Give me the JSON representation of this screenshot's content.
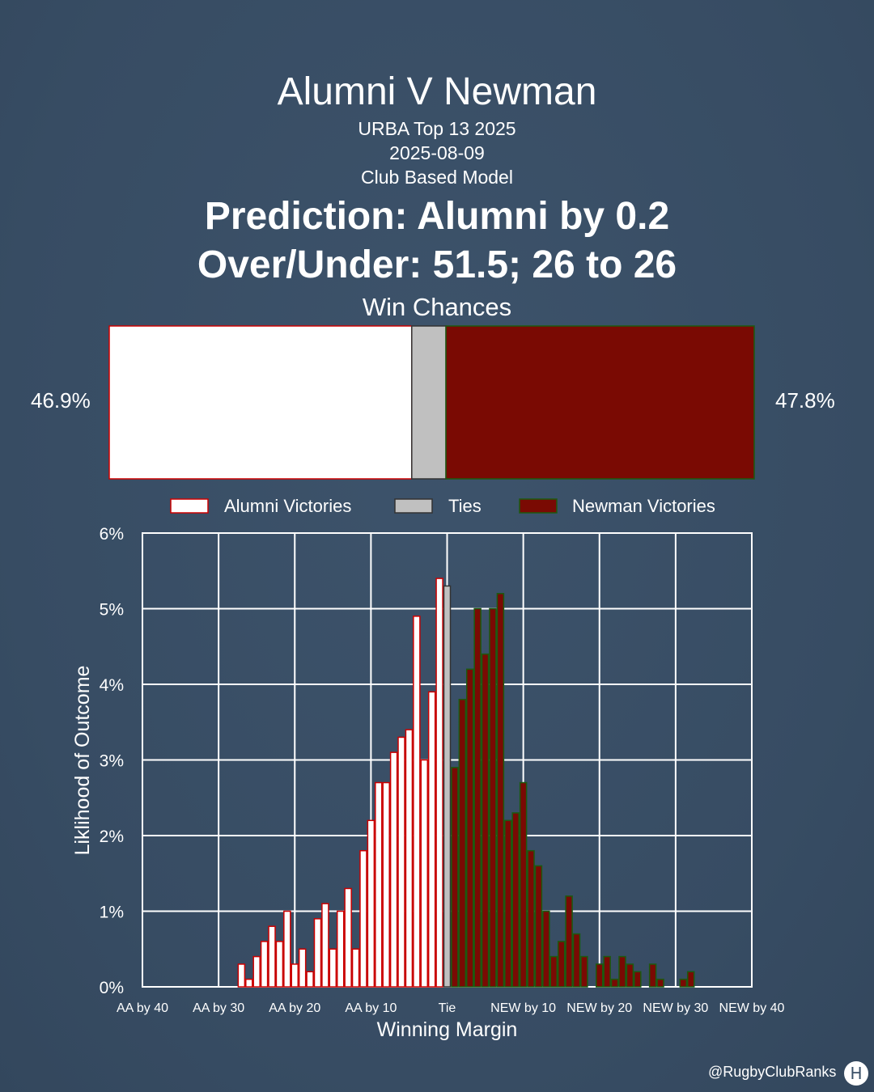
{
  "header": {
    "title": "Alumni V Newman",
    "competition": "URBA Top 13 2025",
    "date": "2025-08-09",
    "model": "Club Based Model",
    "prediction": "Prediction: Alumni by 0.2",
    "over_under": "Over/Under: 51.5; 26 to 26"
  },
  "footer": {
    "handle": "@RugbyClubRanks",
    "logo_glyph": "H"
  },
  "colors": {
    "background": "#3a5068",
    "alumni_fill": "#ffffff",
    "alumni_edge": "#cc0000",
    "tie_fill": "#c0c0c0",
    "newman_fill": "#7a0a03",
    "newman_edge": "#1c5a10",
    "grid": "#ffffff"
  },
  "chart_data": [
    {
      "type": "bar",
      "orientation": "horizontal-stacked",
      "title": "Win Chances",
      "segments": [
        {
          "name": "Alumni Victories",
          "value": 46.9
        },
        {
          "name": "Ties",
          "value": 5.3
        },
        {
          "name": "Newman Victories",
          "value": 47.8
        }
      ],
      "labels": {
        "left": "46.9%",
        "right": "47.8%"
      }
    },
    {
      "type": "bar",
      "title": "",
      "xlabel": "Winning Margin",
      "ylabel": "Liklihood of Outcome",
      "ylim": [
        0,
        6
      ],
      "xlim": [
        -40,
        40
      ],
      "yticks": [
        "0%",
        "1%",
        "2%",
        "3%",
        "4%",
        "5%",
        "6%"
      ],
      "xticks": [
        {
          "x": -40,
          "label": "AA by 40"
        },
        {
          "x": -30,
          "label": "AA by 30"
        },
        {
          "x": -20,
          "label": "AA by 20"
        },
        {
          "x": -10,
          "label": "AA by 10"
        },
        {
          "x": 0,
          "label": "Tie"
        },
        {
          "x": 10,
          "label": "NEW by 10"
        },
        {
          "x": 20,
          "label": "NEW by 20"
        },
        {
          "x": 30,
          "label": "NEW by 30"
        },
        {
          "x": 40,
          "label": "NEW by 40"
        }
      ],
      "grid": true,
      "legend": [
        "Alumni Victories",
        "Ties",
        "Newman Victories"
      ],
      "legend_position": "top",
      "series": [
        {
          "name": "Alumni Victories",
          "x": [
            -27,
            -26,
            -25,
            -24,
            -23,
            -22,
            -21,
            -20,
            -19,
            -18,
            -17,
            -16,
            -15,
            -14,
            -13,
            -12,
            -11,
            -10,
            -9,
            -8,
            -7,
            -6,
            -5,
            -4,
            -3,
            -2,
            -1
          ],
          "values": [
            0.3,
            0.1,
            0.4,
            0.6,
            0.8,
            0.6,
            1.0,
            0.3,
            0.5,
            0.2,
            0.9,
            1.1,
            0.5,
            1.0,
            1.3,
            0.5,
            1.8,
            2.2,
            2.7,
            2.7,
            3.1,
            3.3,
            3.4,
            4.9,
            3.0,
            3.9,
            5.4
          ]
        },
        {
          "name": "Ties",
          "x": [
            0
          ],
          "values": [
            5.3
          ]
        },
        {
          "name": "Newman Victories",
          "x": [
            1,
            2,
            3,
            4,
            5,
            6,
            7,
            8,
            9,
            10,
            11,
            12,
            13,
            14,
            15,
            16,
            17,
            18,
            19,
            20,
            21,
            22,
            23,
            24,
            25,
            26,
            27,
            28,
            29,
            30,
            31,
            32
          ],
          "values": [
            2.9,
            3.8,
            4.2,
            5.0,
            4.4,
            5.0,
            5.2,
            2.2,
            2.3,
            2.7,
            1.8,
            1.6,
            1.0,
            0.4,
            0.6,
            1.2,
            0.7,
            0.4,
            0.0,
            0.3,
            0.4,
            0.1,
            0.4,
            0.3,
            0.2,
            0.0,
            0.3,
            0.1,
            0.0,
            0.0,
            0.1,
            0.2
          ]
        }
      ]
    }
  ]
}
